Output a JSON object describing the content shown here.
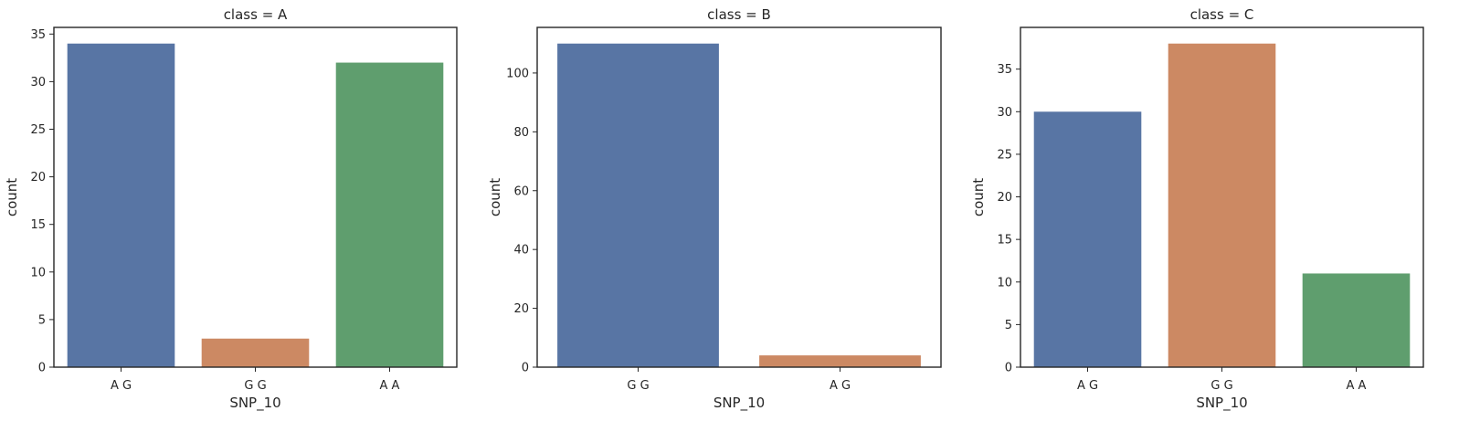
{
  "chart_data": [
    {
      "type": "bar",
      "title": "class = A",
      "xlabel": "SNP_10",
      "ylabel": "count",
      "categories": [
        "A G",
        "G G",
        "A A"
      ],
      "values": [
        34,
        3,
        32
      ],
      "colors": [
        "#5875a4",
        "#cc8963",
        "#5f9e6e"
      ],
      "ylim": [
        0,
        35.7
      ],
      "yticks": [
        0,
        5,
        10,
        15,
        20,
        25,
        30,
        35
      ],
      "grid": false
    },
    {
      "type": "bar",
      "title": "class = B",
      "xlabel": "SNP_10",
      "ylabel": "count",
      "categories": [
        "G G",
        "A G"
      ],
      "values": [
        110,
        4
      ],
      "colors": [
        "#5875a4",
        "#cc8963"
      ],
      "ylim": [
        0,
        115.5
      ],
      "yticks": [
        0,
        20,
        40,
        60,
        80,
        100
      ],
      "grid": false
    },
    {
      "type": "bar",
      "title": "class = C",
      "xlabel": "SNP_10",
      "ylabel": "count",
      "categories": [
        "A G",
        "G G",
        "A A"
      ],
      "values": [
        30,
        38,
        11
      ],
      "colors": [
        "#5875a4",
        "#cc8963",
        "#5f9e6e"
      ],
      "ylim": [
        0,
        39.9
      ],
      "yticks": [
        0,
        5,
        10,
        15,
        20,
        25,
        30,
        35
      ],
      "grid": false
    }
  ]
}
